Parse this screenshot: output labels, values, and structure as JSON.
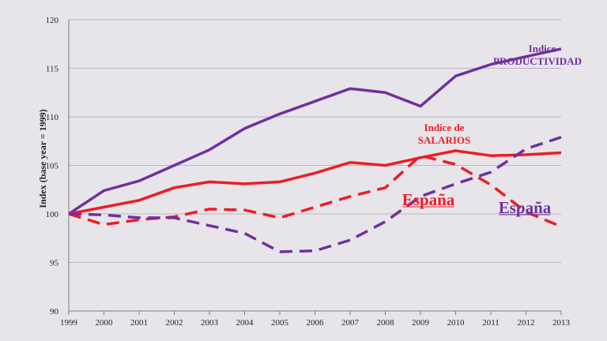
{
  "chart_data": {
    "type": "line",
    "title": "",
    "xlabel": "",
    "ylabel": "Index (base year = 1999)",
    "x": [
      "1999",
      "2000",
      "2001",
      "2002",
      "2003",
      "2004",
      "2005",
      "2006",
      "2007",
      "2008",
      "2009",
      "2010",
      "2011",
      "2012",
      "2013"
    ],
    "ylim": [
      90,
      120
    ],
    "yticks": [
      90,
      95,
      100,
      105,
      110,
      115,
      120
    ],
    "grid": true,
    "series": [
      {
        "name": "Indice PRODUCTIVIDAD",
        "color": "#7030a0",
        "dash": false,
        "values": [
          100,
          102.4,
          103.4,
          105.0,
          106.6,
          108.8,
          110.3,
          111.6,
          112.9,
          112.5,
          111.1,
          114.2,
          115.4,
          116.2,
          117.0
        ]
      },
      {
        "name": "Indice de SALARIOS",
        "color": "#ee1c25",
        "dash": false,
        "values": [
          100,
          100.7,
          101.4,
          102.7,
          103.3,
          103.1,
          103.3,
          104.2,
          105.3,
          105.0,
          105.8,
          106.5,
          106.0,
          106.1,
          106.3
        ]
      },
      {
        "name": "España",
        "color": "#ee1c25",
        "dash": true,
        "values": [
          100,
          98.9,
          99.4,
          99.7,
          100.5,
          100.4,
          99.6,
          100.7,
          101.8,
          102.7,
          106.0,
          105.1,
          103.0,
          100.2,
          98.7
        ]
      },
      {
        "name": "España",
        "color": "#7030a0",
        "dash": true,
        "values": [
          100,
          99.9,
          99.6,
          99.6,
          98.8,
          98.0,
          96.1,
          96.2,
          97.3,
          99.2,
          101.8,
          103.1,
          104.3,
          106.7,
          107.9
        ]
      }
    ],
    "annotations": [
      {
        "text": "Indice",
        "color": "#7030a0"
      },
      {
        "text": "PRODUCTIVIDAD",
        "color": "#7030a0"
      },
      {
        "text": "Indice de",
        "color": "#ee1c25"
      },
      {
        "text": "SALARIOS",
        "color": "#ee1c25"
      },
      {
        "text": "España",
        "color": "#ee1c25"
      },
      {
        "text": "España",
        "color": "#7030a0"
      }
    ]
  }
}
